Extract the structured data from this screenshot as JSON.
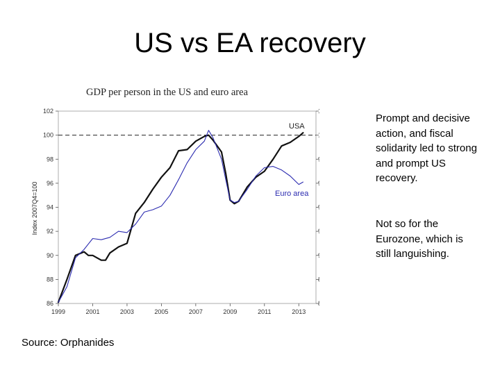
{
  "slide": {
    "title": "US vs EA recovery",
    "paragraph1": "Prompt and decisive action, and fiscal solidarity led to strong and prompt US recovery.",
    "paragraph2": "Not so for the Eurozone, which is still languishing.",
    "source": "Source:  Orphanides"
  },
  "chart_data": {
    "type": "line",
    "title": "GDP per person in the US and euro area",
    "ylabel": "Index 2007Q4=100",
    "xlabel": "",
    "xlim": [
      1999,
      2014
    ],
    "ylim": [
      86,
      102
    ],
    "x_ticks": [
      1999,
      2001,
      2003,
      2005,
      2007,
      2009,
      2011,
      2013
    ],
    "y_ticks": [
      86,
      88,
      90,
      92,
      94,
      96,
      98,
      100,
      102
    ],
    "grid": false,
    "legend": "inline labels",
    "reference_line": {
      "y": 100,
      "style": "dashed"
    },
    "series": [
      {
        "name": "USA",
        "color": "#111111",
        "x": [
          1999.0,
          1999.5,
          2000.0,
          2000.5,
          2000.75,
          2001.0,
          2001.5,
          2001.75,
          2002.0,
          2002.5,
          2003.0,
          2003.5,
          2004.0,
          2004.5,
          2005.0,
          2005.5,
          2006.0,
          2006.5,
          2007.0,
          2007.5,
          2007.75,
          2008.0,
          2008.5,
          2008.75,
          2009.0,
          2009.25,
          2009.5,
          2010.0,
          2010.5,
          2011.0,
          2011.5,
          2012.0,
          2012.5,
          2013.0,
          2013.25
        ],
        "values": [
          86.1,
          88.0,
          90.0,
          90.3,
          90.0,
          90.0,
          89.6,
          89.6,
          90.2,
          90.7,
          91.0,
          93.5,
          94.4,
          95.5,
          96.5,
          97.3,
          98.7,
          98.8,
          99.5,
          99.9,
          100.0,
          99.6,
          98.6,
          96.8,
          94.6,
          94.3,
          94.5,
          95.7,
          96.5,
          97.0,
          98.0,
          99.1,
          99.4,
          99.9,
          100.2
        ]
      },
      {
        "name": "Euro area",
        "color": "#2b2bb0",
        "x": [
          1999.0,
          1999.5,
          2000.0,
          2000.5,
          2001.0,
          2001.5,
          2002.0,
          2002.5,
          2003.0,
          2003.5,
          2004.0,
          2004.5,
          2005.0,
          2005.5,
          2006.0,
          2006.5,
          2007.0,
          2007.5,
          2007.75,
          2008.0,
          2008.5,
          2008.75,
          2009.0,
          2009.25,
          2009.5,
          2010.0,
          2010.5,
          2011.0,
          2011.5,
          2012.0,
          2012.5,
          2013.0,
          2013.25
        ],
        "values": [
          86.1,
          87.4,
          89.8,
          90.5,
          91.4,
          91.3,
          91.5,
          92.0,
          91.9,
          92.6,
          93.6,
          93.8,
          94.1,
          95.0,
          96.3,
          97.7,
          98.8,
          99.5,
          100.4,
          99.8,
          98.0,
          96.3,
          94.6,
          94.4,
          94.5,
          95.5,
          96.6,
          97.3,
          97.4,
          97.1,
          96.6,
          95.9,
          96.1
        ]
      }
    ]
  }
}
